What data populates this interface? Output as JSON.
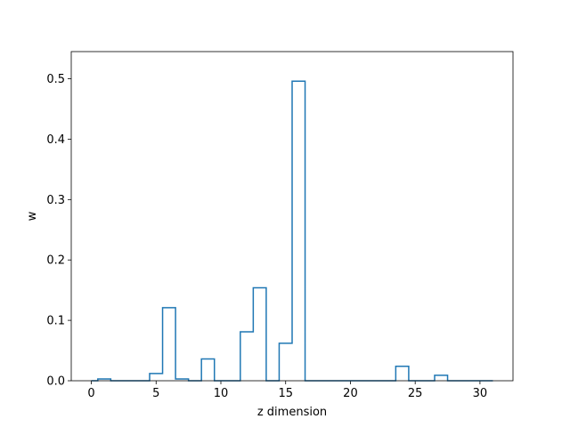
{
  "chart_data": {
    "type": "line",
    "drawstyle": "steps-mid",
    "title": "",
    "xlabel": "z dimension",
    "ylabel": "w",
    "xlim": [
      -1.55,
      32.55
    ],
    "ylim": [
      0,
      0.545
    ],
    "xticks": [
      0,
      5,
      10,
      15,
      20,
      25,
      30
    ],
    "yticks": [
      0.0,
      0.1,
      0.2,
      0.3,
      0.4,
      0.5
    ],
    "ytick_labels": [
      "0.0",
      "0.1",
      "0.2",
      "0.3",
      "0.4",
      "0.5"
    ],
    "grid": false,
    "line_color": "#1f77b4",
    "series": [
      {
        "x": [
          0,
          1,
          2,
          3,
          4,
          5,
          6,
          7,
          8,
          9,
          10,
          11,
          12,
          13,
          14,
          15,
          16,
          17,
          18,
          19,
          20,
          21,
          22,
          23,
          24,
          25,
          26,
          27,
          28,
          29,
          30,
          31
        ],
        "values": [
          0.0,
          0.003,
          0.0,
          0.0,
          0.0,
          0.012,
          0.121,
          0.003,
          0.0,
          0.036,
          0.0,
          0.0,
          0.081,
          0.154,
          0.0,
          0.062,
          0.496,
          0.0,
          0.0,
          0.0,
          0.0,
          0.0,
          0.0,
          0.0,
          0.024,
          0.0,
          0.0,
          0.009,
          0.0,
          0.0,
          0.0,
          0.0
        ]
      }
    ]
  }
}
